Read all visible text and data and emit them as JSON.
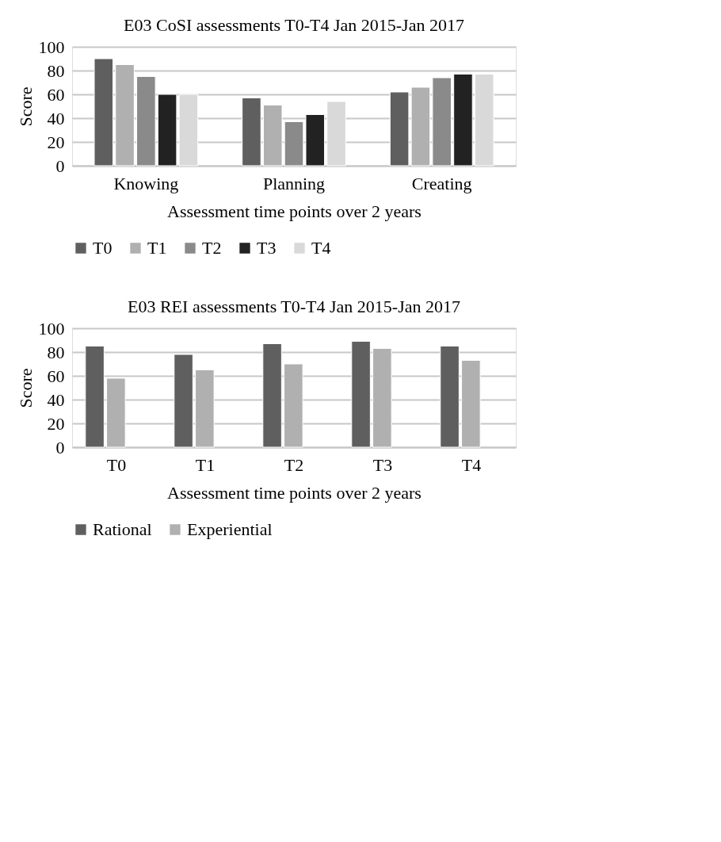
{
  "chart_data": [
    {
      "type": "bar",
      "title": "E03 CoSI assessments T0-T4 Jan 2015-Jan 2017",
      "xlabel": "Assessment time points over 2 years",
      "ylabel": "Score",
      "categories": [
        "Knowing",
        "Planning",
        "Creating"
      ],
      "ylim": [
        0,
        100
      ],
      "yticks": [
        0,
        20,
        40,
        60,
        80,
        100
      ],
      "grid": "y",
      "legend": "bottom",
      "series": [
        {
          "name": "T0",
          "color": "#5f5f5f",
          "values": [
            90,
            57,
            62
          ]
        },
        {
          "name": "T1",
          "color": "#b0b0b0",
          "values": [
            85,
            51,
            66
          ]
        },
        {
          "name": "T2",
          "color": "#8a8a8a",
          "values": [
            75,
            37,
            74
          ]
        },
        {
          "name": "T3",
          "color": "#222222",
          "values": [
            60,
            43,
            77
          ]
        },
        {
          "name": "T4",
          "color": "#d9d9d9",
          "values": [
            60,
            54,
            77
          ]
        }
      ]
    },
    {
      "type": "bar",
      "title": "E03 REI assessments T0-T4 Jan 2015-Jan 2017",
      "xlabel": "Assessment time points over 2 years",
      "ylabel": "Score",
      "categories": [
        "T0",
        "T1",
        "T2",
        "T3",
        "T4"
      ],
      "ylim": [
        0,
        100
      ],
      "yticks": [
        0,
        20,
        40,
        60,
        80,
        100
      ],
      "grid": "y",
      "legend": "bottom",
      "series": [
        {
          "name": "Rational",
          "color": "#5f5f5f",
          "values": [
            85,
            78,
            87,
            89,
            85
          ]
        },
        {
          "name": "Experiential",
          "color": "#b0b0b0",
          "values": [
            58,
            65,
            70,
            83,
            73
          ]
        }
      ]
    }
  ]
}
